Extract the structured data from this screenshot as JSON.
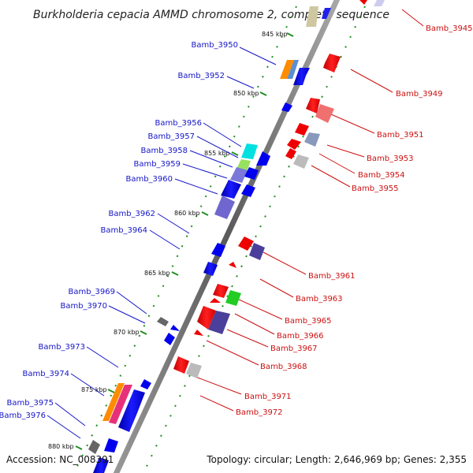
{
  "title": "Burkholderia cepacia AMMD chromosome 2, complete sequence",
  "footer": {
    "accession": "Accession: NC_008391",
    "topology": "Topology: circular; Length: 2,646,969 bp; Genes: 2,355"
  },
  "colors": {
    "left_label": "#1515c8",
    "right_label": "#cc1111",
    "backbone": "#7a7a7a",
    "tick": "#1f8f1f"
  },
  "kbp_ticks": [
    "845 kbp",
    "850 kbp",
    "855 kbp",
    "860 kbp",
    "865 kbp",
    "870 kbp",
    "875 kbp",
    "880 kbp"
  ],
  "left_labels": [
    "Bamb_3950",
    "Bamb_3952",
    "Bamb_3956",
    "Bamb_3957",
    "Bamb_3958",
    "Bamb_3959",
    "Bamb_3960",
    "Bamb_3962",
    "Bamb_3964",
    "Bamb_3969",
    "Bamb_3970",
    "Bamb_3973",
    "Bamb_3974",
    "Bamb_3975",
    "Bamb_3976"
  ],
  "right_labels": [
    "Bamb_3945",
    "Bamb_3949",
    "Bamb_3951",
    "Bamb_3953",
    "Bamb_3954",
    "Bamb_3955",
    "Bamb_3961",
    "Bamb_3963",
    "Bamb_3965",
    "Bamb_3966",
    "Bamb_3967",
    "Bamb_3968",
    "Bamb_3971",
    "Bamb_3972"
  ]
}
